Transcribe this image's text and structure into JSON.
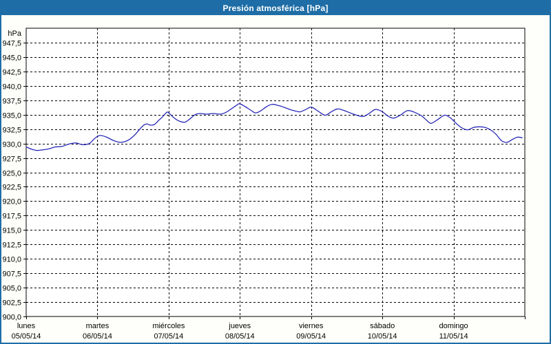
{
  "window": {
    "title": "Presión atmosférica [hPa]"
  },
  "colors": {
    "titlebar": "#1e6da6",
    "window_border": "#1e6da6",
    "line": "#2828b8",
    "grid": "#000000",
    "axis": "#000000",
    "plot_background": "#ffffff",
    "content_background": "#fefefa"
  },
  "chart_data": {
    "type": "line",
    "title": "Presión atmosférica [hPa]",
    "unit_label": "hPa",
    "grid": "dashed",
    "legend": "none",
    "y_axis": {
      "min": 900,
      "max": 950,
      "tick_step": 2.5,
      "ticks": [
        {
          "label": "947,5",
          "value": 947.5
        },
        {
          "label": "945,0",
          "value": 945.0
        },
        {
          "label": "942,5",
          "value": 942.5
        },
        {
          "label": "940,0",
          "value": 940.0
        },
        {
          "label": "937,5",
          "value": 937.5
        },
        {
          "label": "935,0",
          "value": 935.0
        },
        {
          "label": "932,5",
          "value": 932.5
        },
        {
          "label": "930,0",
          "value": 930.0
        },
        {
          "label": "927,5",
          "value": 927.5
        },
        {
          "label": "925,0",
          "value": 925.0
        },
        {
          "label": "922,5",
          "value": 922.5
        },
        {
          "label": "920,0",
          "value": 920.0
        },
        {
          "label": "917,5",
          "value": 917.5
        },
        {
          "label": "915,0",
          "value": 915.0
        },
        {
          "label": "912,5",
          "value": 912.5
        },
        {
          "label": "910,0",
          "value": 910.0
        },
        {
          "label": "907,5",
          "value": 907.5
        },
        {
          "label": "905,0",
          "value": 905.0
        },
        {
          "label": "902,5",
          "value": 902.5
        },
        {
          "label": "900,0",
          "value": 900.0
        }
      ]
    },
    "x_axis": {
      "hours_total": 168,
      "days": [
        {
          "name": "lunes",
          "date": "05/05/14"
        },
        {
          "name": "martes",
          "date": "06/05/14"
        },
        {
          "name": "miércoles",
          "date": "07/05/14"
        },
        {
          "name": "jueves",
          "date": "08/05/14"
        },
        {
          "name": "viernes",
          "date": "09/05/14"
        },
        {
          "name": "sábado",
          "date": "10/05/14"
        },
        {
          "name": "domingo",
          "date": "11/05/14"
        }
      ]
    },
    "series": [
      {
        "name": "Presión atmosférica",
        "unit": "hPa",
        "points": [
          [
            0,
            929.4
          ],
          [
            1.9,
            929.0
          ],
          [
            3.7,
            928.8
          ],
          [
            5.6,
            928.9
          ],
          [
            7.9,
            929.1
          ],
          [
            9.7,
            929.4
          ],
          [
            12.1,
            929.5
          ],
          [
            14.4,
            929.9
          ],
          [
            16.7,
            930.1
          ],
          [
            19,
            929.8
          ],
          [
            21.3,
            930.0
          ],
          [
            22.5,
            930.6
          ],
          [
            23.9,
            931.2
          ],
          [
            25.1,
            931.4
          ],
          [
            27.1,
            931.1
          ],
          [
            29.5,
            930.5
          ],
          [
            31.8,
            930.2
          ],
          [
            34.1,
            930.5
          ],
          [
            36,
            931.2
          ],
          [
            37.8,
            932.2
          ],
          [
            39.4,
            933.1
          ],
          [
            40.6,
            933.4
          ],
          [
            41.8,
            933.2
          ],
          [
            43.2,
            933.3
          ],
          [
            44.6,
            934.0
          ],
          [
            45.7,
            934.5
          ],
          [
            47.1,
            935.3
          ],
          [
            47.8,
            935.4
          ],
          [
            49.7,
            934.5
          ],
          [
            51.5,
            933.9
          ],
          [
            53.4,
            933.7
          ],
          [
            55,
            934.2
          ],
          [
            56.9,
            935.0
          ],
          [
            58.5,
            935.2
          ],
          [
            60.8,
            935.1
          ],
          [
            63.1,
            935.2
          ],
          [
            65.4,
            935.1
          ],
          [
            67.3,
            935.4
          ],
          [
            69.1,
            936.0
          ],
          [
            70.8,
            936.6
          ],
          [
            71.9,
            936.9
          ],
          [
            73.8,
            936.4
          ],
          [
            75.6,
            935.8
          ],
          [
            77.3,
            935.3
          ],
          [
            79.1,
            935.7
          ],
          [
            81,
            936.4
          ],
          [
            82.8,
            936.8
          ],
          [
            84.9,
            936.6
          ],
          [
            86.8,
            936.3
          ],
          [
            88.9,
            935.9
          ],
          [
            91,
            935.6
          ],
          [
            92.3,
            935.5
          ],
          [
            94.2,
            935.9
          ],
          [
            96.1,
            936.3
          ],
          [
            98.4,
            935.6
          ],
          [
            100.7,
            934.9
          ],
          [
            102.8,
            935.5
          ],
          [
            104.9,
            936.0
          ],
          [
            107.2,
            935.7
          ],
          [
            109.7,
            935.2
          ],
          [
            112.1,
            934.8
          ],
          [
            113.7,
            934.7
          ],
          [
            115.8,
            935.3
          ],
          [
            117.6,
            935.9
          ],
          [
            119.7,
            935.6
          ],
          [
            121.8,
            934.8
          ],
          [
            123.7,
            934.4
          ],
          [
            126,
            934.9
          ],
          [
            128.5,
            935.7
          ],
          [
            130.9,
            935.4
          ],
          [
            133.2,
            934.8
          ],
          [
            135,
            934.0
          ],
          [
            136.4,
            933.5
          ],
          [
            138.5,
            934.1
          ],
          [
            140.9,
            934.9
          ],
          [
            142.5,
            934.6
          ],
          [
            143.9,
            934.0
          ],
          [
            145.7,
            933.1
          ],
          [
            147.6,
            932.5
          ],
          [
            149,
            932.4
          ],
          [
            150.8,
            932.8
          ],
          [
            152.7,
            932.9
          ],
          [
            154.5,
            932.8
          ],
          [
            156.4,
            932.4
          ],
          [
            158.3,
            931.6
          ],
          [
            160.1,
            930.5
          ],
          [
            162,
            930.2
          ],
          [
            163.8,
            930.7
          ],
          [
            165.5,
            931.1
          ],
          [
            167.1,
            931.0
          ]
        ]
      }
    ]
  }
}
